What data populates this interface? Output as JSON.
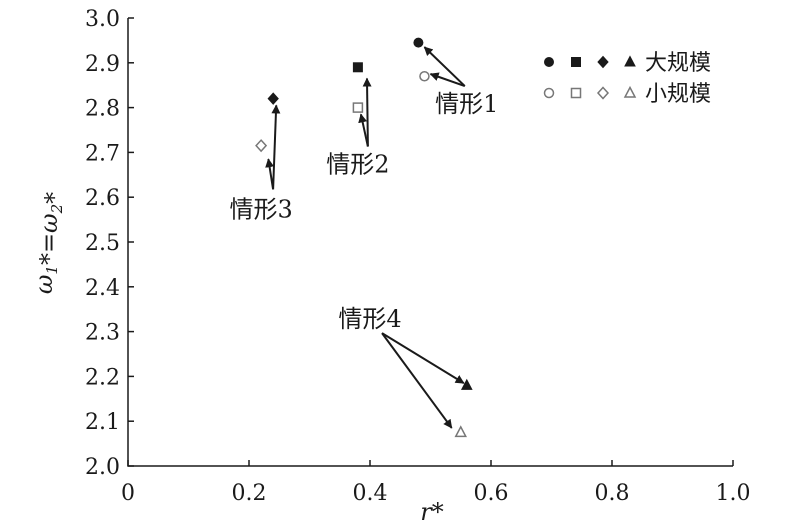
{
  "chart_data": {
    "type": "scatter",
    "title": "",
    "xlabel": "r*",
    "ylabel": "ω1*=ω2*",
    "xlim": [
      0,
      1.0
    ],
    "ylim": [
      2.0,
      3.0
    ],
    "x_ticks": [
      "0",
      "0.2",
      "0.4",
      "0.6",
      "0.8",
      "1.0"
    ],
    "y_ticks": [
      "2.0",
      "2.1",
      "2.2",
      "2.3",
      "2.4",
      "2.5",
      "2.6",
      "2.7",
      "2.8",
      "2.9",
      "3.0"
    ],
    "grid": false,
    "legend_position": "top-right",
    "series": [
      {
        "name": "大规模",
        "fill": "filled",
        "points": [
          {
            "case": "情形1",
            "marker": "circle",
            "x": 0.48,
            "y": 2.945
          },
          {
            "case": "情形2",
            "marker": "square",
            "x": 0.38,
            "y": 2.89
          },
          {
            "case": "情形3",
            "marker": "diamond",
            "x": 0.24,
            "y": 2.82
          },
          {
            "case": "情形4",
            "marker": "triangle",
            "x": 0.56,
            "y": 2.18
          }
        ]
      },
      {
        "name": "小规模",
        "fill": "open",
        "points": [
          {
            "case": "情形1",
            "marker": "circle",
            "x": 0.49,
            "y": 2.87
          },
          {
            "case": "情形2",
            "marker": "square",
            "x": 0.38,
            "y": 2.8
          },
          {
            "case": "情形3",
            "marker": "diamond",
            "x": 0.22,
            "y": 2.715
          },
          {
            "case": "情形4",
            "marker": "triangle",
            "x": 0.55,
            "y": 2.075
          }
        ]
      }
    ],
    "annotations": [
      {
        "text": "情形1",
        "x": 0.56,
        "y": 2.79,
        "arrow_to": [
          [
            0.49,
            2.935
          ],
          [
            0.5,
            2.875
          ]
        ]
      },
      {
        "text": "情形2",
        "x": 0.38,
        "y": 2.655,
        "arrow_to": [
          [
            0.395,
            2.865
          ],
          [
            0.385,
            2.785
          ]
        ]
      },
      {
        "text": "情形3",
        "x": 0.22,
        "y": 2.555,
        "arrow_to": [
          [
            0.245,
            2.805
          ],
          [
            0.232,
            2.685
          ]
        ]
      },
      {
        "text": "情形4",
        "x": 0.4,
        "y": 2.31,
        "arrow_to": [
          [
            0.555,
            2.185
          ],
          [
            0.535,
            2.085
          ]
        ]
      }
    ],
    "colors": {
      "ink": "#1a1a1a",
      "open_marker": "#777777"
    }
  }
}
